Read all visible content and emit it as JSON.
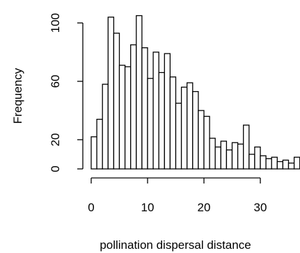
{
  "chart_data": {
    "type": "bar",
    "histogram": true,
    "title": "",
    "xlabel": "pollination dispersal distance",
    "ylabel": "Frequency",
    "bin_width": 1,
    "bin_starts": [
      0,
      1,
      2,
      3,
      4,
      5,
      6,
      7,
      8,
      9,
      10,
      11,
      12,
      13,
      14,
      15,
      16,
      17,
      18,
      19,
      20,
      21,
      22,
      23,
      24,
      25,
      26,
      27,
      28,
      29,
      30,
      31,
      32,
      33,
      34,
      35,
      36
    ],
    "values": [
      22,
      34,
      58,
      104,
      93,
      71,
      70,
      85,
      105,
      83,
      62,
      80,
      66,
      79,
      63,
      45,
      56,
      59,
      53,
      40,
      36,
      21,
      15,
      19,
      13,
      18,
      17,
      30,
      10,
      15,
      9,
      7,
      8,
      5,
      6,
      4,
      8
    ],
    "xlim": [
      0,
      37
    ],
    "ylim": [
      0,
      105
    ],
    "xticks": [
      0,
      10,
      20,
      30
    ],
    "yticks": [
      0,
      20,
      60,
      100
    ],
    "grid": false,
    "legend": "none",
    "bar_fill": "#ffffff",
    "bar_stroke": "#000000"
  }
}
